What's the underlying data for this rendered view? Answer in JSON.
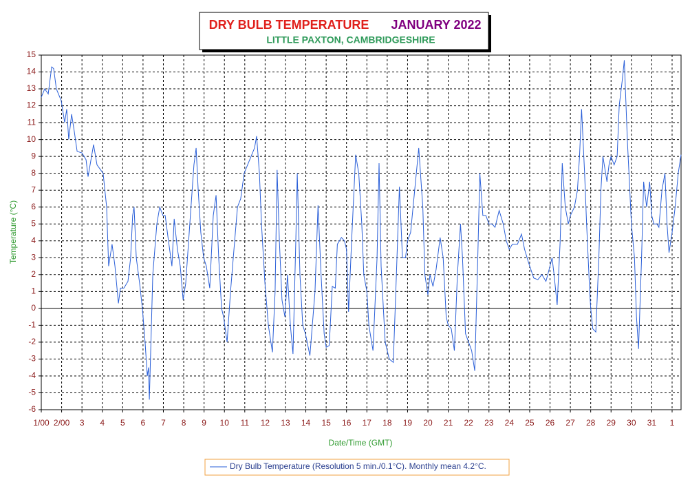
{
  "chart_data": {
    "type": "line",
    "title": "DRY BULB TEMPERATURE",
    "title_period": "JANUARY 2022",
    "subtitle": "LITTLE PAXTON, CAMBRIDGESHIRE",
    "y_label": "Temperature (°C)",
    "x_label": "Date/Time (GMT)",
    "xlim": [
      0,
      31.44
    ],
    "ylim": [
      -6,
      15
    ],
    "yticks": [
      -6,
      -5,
      -4,
      -3,
      -2,
      -1,
      0,
      1,
      2,
      3,
      4,
      5,
      6,
      7,
      8,
      9,
      10,
      11,
      12,
      13,
      14,
      15
    ],
    "xticks": [
      {
        "value": 0,
        "label": "1/00"
      },
      {
        "value": 1,
        "label": "2/00"
      },
      {
        "value": 2,
        "label": "3"
      },
      {
        "value": 3,
        "label": "4"
      },
      {
        "value": 4,
        "label": "5"
      },
      {
        "value": 5,
        "label": "6"
      },
      {
        "value": 6,
        "label": "7"
      },
      {
        "value": 7,
        "label": "8"
      },
      {
        "value": 8,
        "label": "9"
      },
      {
        "value": 9,
        "label": "10"
      },
      {
        "value": 10,
        "label": "11"
      },
      {
        "value": 11,
        "label": "12"
      },
      {
        "value": 12,
        "label": "13"
      },
      {
        "value": 13,
        "label": "14"
      },
      {
        "value": 14,
        "label": "15"
      },
      {
        "value": 15,
        "label": "16"
      },
      {
        "value": 16,
        "label": "17"
      },
      {
        "value": 17,
        "label": "18"
      },
      {
        "value": 18,
        "label": "19"
      },
      {
        "value": 19,
        "label": "20"
      },
      {
        "value": 20,
        "label": "21"
      },
      {
        "value": 21,
        "label": "22"
      },
      {
        "value": 22,
        "label": "23"
      },
      {
        "value": 23,
        "label": "24"
      },
      {
        "value": 24,
        "label": "25"
      },
      {
        "value": 25,
        "label": "26"
      },
      {
        "value": 26,
        "label": "27"
      },
      {
        "value": 27,
        "label": "28"
      },
      {
        "value": 28,
        "label": "29"
      },
      {
        "value": 29,
        "label": "30"
      },
      {
        "value": 30,
        "label": "31"
      },
      {
        "value": 31,
        "label": "1"
      }
    ],
    "grid": true,
    "x": [
      0,
      0.17,
      0.34,
      0.51,
      0.61,
      0.74,
      0.98,
      1.15,
      1.25,
      1.35,
      1.49,
      1.62,
      1.76,
      2.0,
      2.2,
      2.3,
      2.47,
      2.57,
      2.74,
      2.98,
      3.04,
      3.21,
      3.31,
      3.48,
      3.62,
      3.79,
      3.89,
      4.06,
      4.26,
      4.39,
      4.49,
      4.56,
      4.67,
      4.83,
      4.97,
      5.1,
      5.21,
      5.27,
      5.31,
      5.48,
      5.68,
      5.82,
      5.98,
      6.09,
      6.25,
      6.42,
      6.53,
      6.69,
      6.83,
      6.97,
      7.1,
      7.3,
      7.5,
      7.61,
      7.71,
      7.84,
      7.98,
      8.11,
      8.28,
      8.45,
      8.59,
      8.72,
      8.86,
      8.96,
      9.13,
      9.3,
      9.47,
      9.64,
      9.8,
      9.97,
      10.14,
      10.31,
      10.48,
      10.58,
      10.72,
      10.82,
      10.99,
      11.16,
      11.36,
      11.49,
      11.59,
      11.7,
      11.83,
      11.97,
      12.1,
      12.24,
      12.37,
      12.51,
      12.58,
      12.71,
      12.85,
      12.98,
      13.2,
      13.45,
      13.6,
      13.75,
      13.9,
      14.0,
      14.15,
      14.3,
      14.45,
      14.55,
      14.75,
      14.9,
      15.0,
      15.1,
      15.25,
      15.45,
      15.6,
      15.75,
      15.85,
      16.0,
      16.1,
      16.3,
      16.5,
      16.6,
      16.7,
      16.9,
      17.0,
      17.1,
      17.3,
      17.45,
      17.6,
      17.75,
      17.9,
      18.0,
      18.15,
      18.35,
      18.55,
      18.75,
      18.85,
      19.0,
      19.1,
      19.25,
      19.4,
      19.6,
      19.75,
      19.9,
      20.0,
      20.15,
      20.3,
      20.45,
      20.6,
      20.7,
      20.85,
      21.0,
      21.15,
      21.3,
      21.45,
      21.55,
      21.7,
      21.85,
      22.0,
      22.15,
      22.3,
      22.5,
      22.7,
      22.85,
      23.0,
      23.15,
      23.4,
      23.6,
      23.75,
      23.95,
      24.2,
      24.4,
      24.6,
      24.8,
      25.0,
      25.1,
      25.2,
      25.35,
      25.5,
      25.6,
      25.75,
      25.9,
      26.0,
      26.2,
      26.35,
      26.45,
      26.55,
      26.7,
      26.8,
      26.95,
      27.0,
      27.1,
      27.25,
      27.4,
      27.5,
      27.6,
      27.8,
      27.9,
      28.0,
      28.15,
      28.3,
      28.4,
      28.55,
      28.65,
      28.8,
      28.9,
      29.0,
      29.15,
      29.25,
      29.35,
      29.5,
      29.6,
      29.75,
      29.9,
      30.0,
      30.1,
      30.25,
      30.35,
      30.5,
      30.65,
      30.75,
      30.85,
      31.0,
      31.15,
      31.3,
      31.44
    ],
    "series": [
      {
        "name": "Dry Bulb Temperature (Resolution 5 min./0.1°C). Monthly mean 4.2°C.",
        "color": "#2a5fd8",
        "values": [
          12.5,
          13,
          12.7,
          14.3,
          14.2,
          13,
          12.3,
          11,
          11.8,
          10,
          11.5,
          10.5,
          9.3,
          9.2,
          8.8,
          7.8,
          9,
          9.7,
          8.5,
          8.1,
          8,
          6,
          2.5,
          3.8,
          2.5,
          0.3,
          1.2,
          1.2,
          1.6,
          3,
          5.5,
          6,
          3,
          1.5,
          0,
          -2,
          -4,
          -3.5,
          -5.4,
          2,
          5,
          6,
          5.5,
          5.5,
          4,
          2.5,
          5.3,
          3.5,
          2.5,
          0.5,
          1.5,
          5,
          8.5,
          9.5,
          7,
          4.5,
          3,
          2.5,
          1.2,
          5.5,
          6.7,
          3,
          0,
          -0.5,
          -2,
          1,
          3.5,
          6,
          6.5,
          8,
          8.5,
          9,
          9.5,
          10.2,
          8,
          5,
          1.5,
          -1,
          -2.6,
          1,
          8.2,
          4,
          0.5,
          -0.5,
          2,
          -1,
          -2.7,
          4,
          8,
          2,
          -1,
          -1.5,
          -2.8,
          1,
          6.1,
          2,
          -1.5,
          -2.3,
          -2.2,
          1.3,
          1.2,
          3.8,
          4.2,
          4,
          3.5,
          -0.2,
          4,
          9.1,
          8,
          5,
          2,
          1,
          -1,
          -2.5,
          3,
          8.6,
          2.5,
          -2,
          -2.5,
          -3,
          -3.2,
          2,
          7.2,
          3,
          3,
          4,
          4.5,
          7,
          9.5,
          6,
          2,
          0.8,
          2,
          1.3,
          2.3,
          4.2,
          3,
          -0.5,
          -1,
          -1.2,
          -2.5,
          2,
          5,
          3,
          -1.5,
          -2,
          -2.5,
          -3.7,
          3,
          8,
          5.5,
          5.5,
          5,
          5,
          4.8,
          5.8,
          5,
          4,
          3.5,
          3.8,
          3.8,
          4.4,
          3.5,
          2.7,
          1.8,
          1.7,
          2,
          1.6,
          2.5,
          3,
          2,
          0.2,
          4,
          8.6,
          6,
          5,
          5.5,
          6,
          7,
          9,
          11.8,
          8,
          5,
          1,
          0,
          -1.2,
          -1.4,
          3,
          7,
          9,
          7.5,
          8.5,
          9,
          8.5,
          9,
          12,
          13.5,
          14.7,
          10,
          7.5,
          5,
          3,
          -0.5,
          -2.4,
          3,
          7.5,
          6,
          7.5,
          5.5,
          5,
          5,
          4.8,
          7,
          8,
          5,
          3.3,
          4.5,
          6,
          8,
          9.1
        ]
      }
    ]
  }
}
